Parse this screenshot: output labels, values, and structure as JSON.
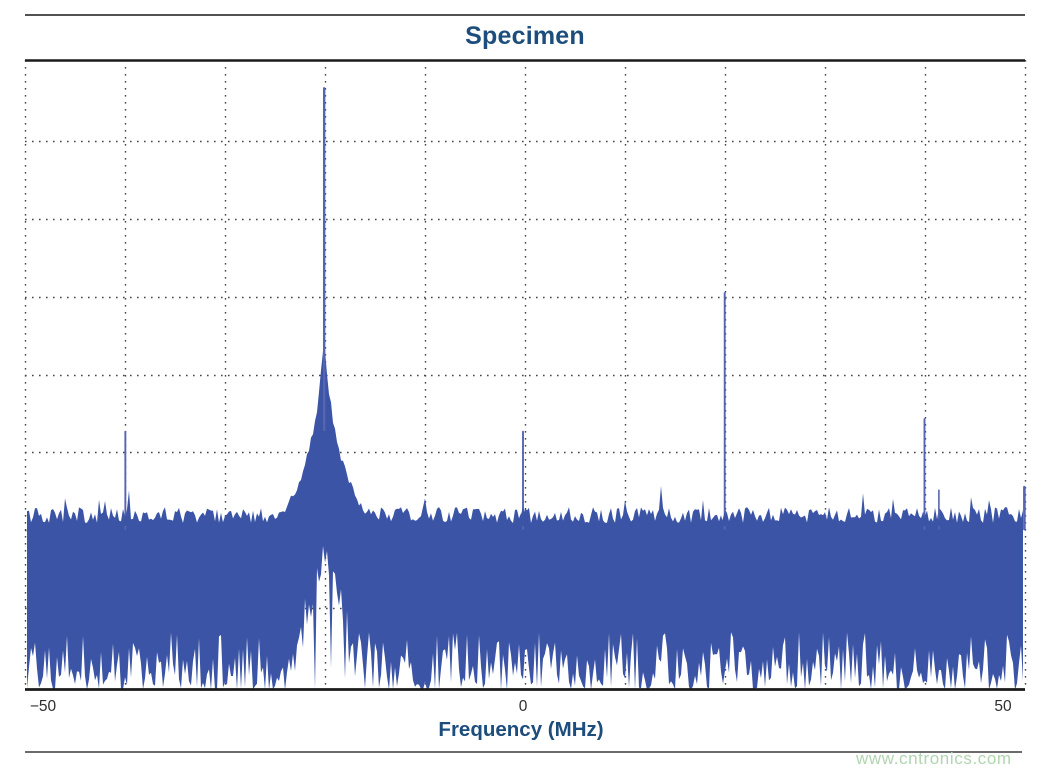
{
  "figure": {
    "title": "Specimen",
    "watermark": "www.cntronics.com"
  },
  "chart_data": {
    "type": "line",
    "subtype": "frequency-spectrum",
    "title": "Specimen",
    "xlabel": "Frequency (MHz)",
    "ylabel": "",
    "x_ticks": [
      {
        "label": "−50",
        "mhz": -50
      },
      {
        "label": "0",
        "mhz": 0
      },
      {
        "label": "50",
        "mhz": 50
      }
    ],
    "x_range_mhz": [
      -51.8,
      52.3
    ],
    "y_axis_labels_visible": false,
    "grid": {
      "style": "dotted",
      "vertical_line_count": 11,
      "horizontal_line_count": 7
    },
    "noise_floor_level_norm": 0.265,
    "series": [
      {
        "name": "spectrum-trace",
        "peaks": [
          {
            "freq_mhz": -41.4,
            "amplitude_norm": 0.41
          },
          {
            "freq_mhz": -20.7,
            "amplitude_norm": 0.955,
            "note": "main carrier with phase-noise skirt"
          },
          {
            "freq_mhz": 0.0,
            "amplitude_norm": 0.41
          },
          {
            "freq_mhz": 21.0,
            "amplitude_norm": 0.63
          },
          {
            "freq_mhz": 41.8,
            "amplitude_norm": 0.43
          },
          {
            "freq_mhz": 43.3,
            "amplitude_norm": 0.317
          },
          {
            "freq_mhz": 52.2,
            "amplitude_norm": 0.322
          }
        ]
      }
    ],
    "colors": {
      "trace": "#3b54a5",
      "spike_line": "#5565b2",
      "title_text": "#1c4d7c",
      "axis_label_text": "#1c4d7c",
      "tick_text": "#2e2e2e",
      "grid": "#454545",
      "frame": "#1a1a1a",
      "rule": "#3a3a3a",
      "watermark": "#b0d5b0",
      "background": "#ffffff"
    }
  }
}
